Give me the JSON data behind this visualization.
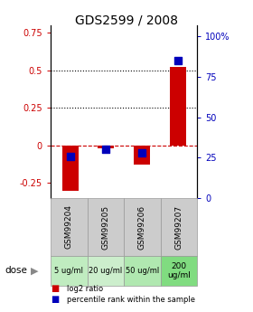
{
  "title": "GDS2599 / 2008",
  "categories": [
    "GSM99204",
    "GSM99205",
    "GSM99206",
    "GSM99207"
  ],
  "doses": [
    "5 ug/ml",
    "20 ug/ml",
    "50 ug/ml",
    "200\nug/ml"
  ],
  "dose_colors": [
    "#c0ecc0",
    "#c8eec8",
    "#b0e8b0",
    "#80dc80"
  ],
  "log2_values": [
    -0.3,
    -0.02,
    -0.13,
    0.52
  ],
  "percentile_values": [
    26,
    30,
    28,
    85
  ],
  "ylim_left": [
    -0.35,
    0.8
  ],
  "ylim_right": [
    0,
    107
  ],
  "left_ticks": [
    -0.25,
    0,
    0.25,
    0.5,
    0.75
  ],
  "right_ticks": [
    0,
    25,
    50,
    75,
    100
  ],
  "hlines_dotted": [
    0.25,
    0.5
  ],
  "hline_dashed": 0,
  "bar_color": "#cc0000",
  "dot_color": "#0000bb",
  "bar_width": 0.45,
  "dot_size": 40,
  "legend_red": "log2 ratio",
  "legend_blue": "percentile rank within the sample",
  "left_label_color": "#cc0000",
  "right_label_color": "#0000bb"
}
